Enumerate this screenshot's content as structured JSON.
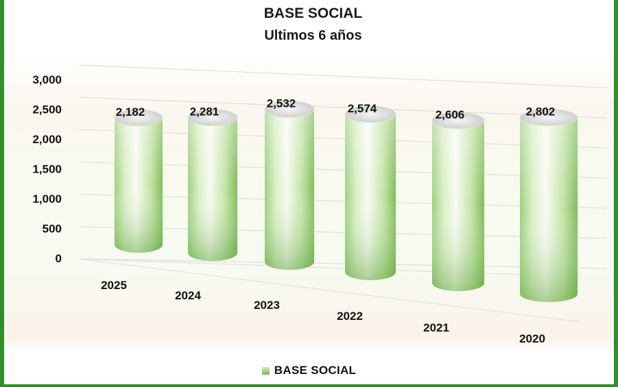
{
  "chart_data": {
    "type": "bar",
    "style": "3d-cylinder",
    "title": "BASE SOCIAL",
    "subtitle": "Ultimos 6 años",
    "categories": [
      "2025",
      "2024",
      "2023",
      "2022",
      "2021",
      "2020"
    ],
    "series": [
      {
        "name": "BASE SOCIAL",
        "values": [
          2182,
          2281,
          2532,
          2574,
          2606,
          2802
        ],
        "labels": [
          "2,182",
          "2,281",
          "2,532",
          "2,574",
          "2,606",
          "2,802"
        ]
      }
    ],
    "yticks": [
      "0",
      "500",
      "1,000",
      "1,500",
      "2,000",
      "2,500",
      "3,000"
    ],
    "ylim": [
      0,
      3000
    ],
    "grid": true,
    "legend": "bottom",
    "colors": {
      "bar_light": "#f7fbf1",
      "bar_mid": "#b9df98",
      "bar_dark": "#6fb24a",
      "frame": "#2f8f2a"
    }
  }
}
